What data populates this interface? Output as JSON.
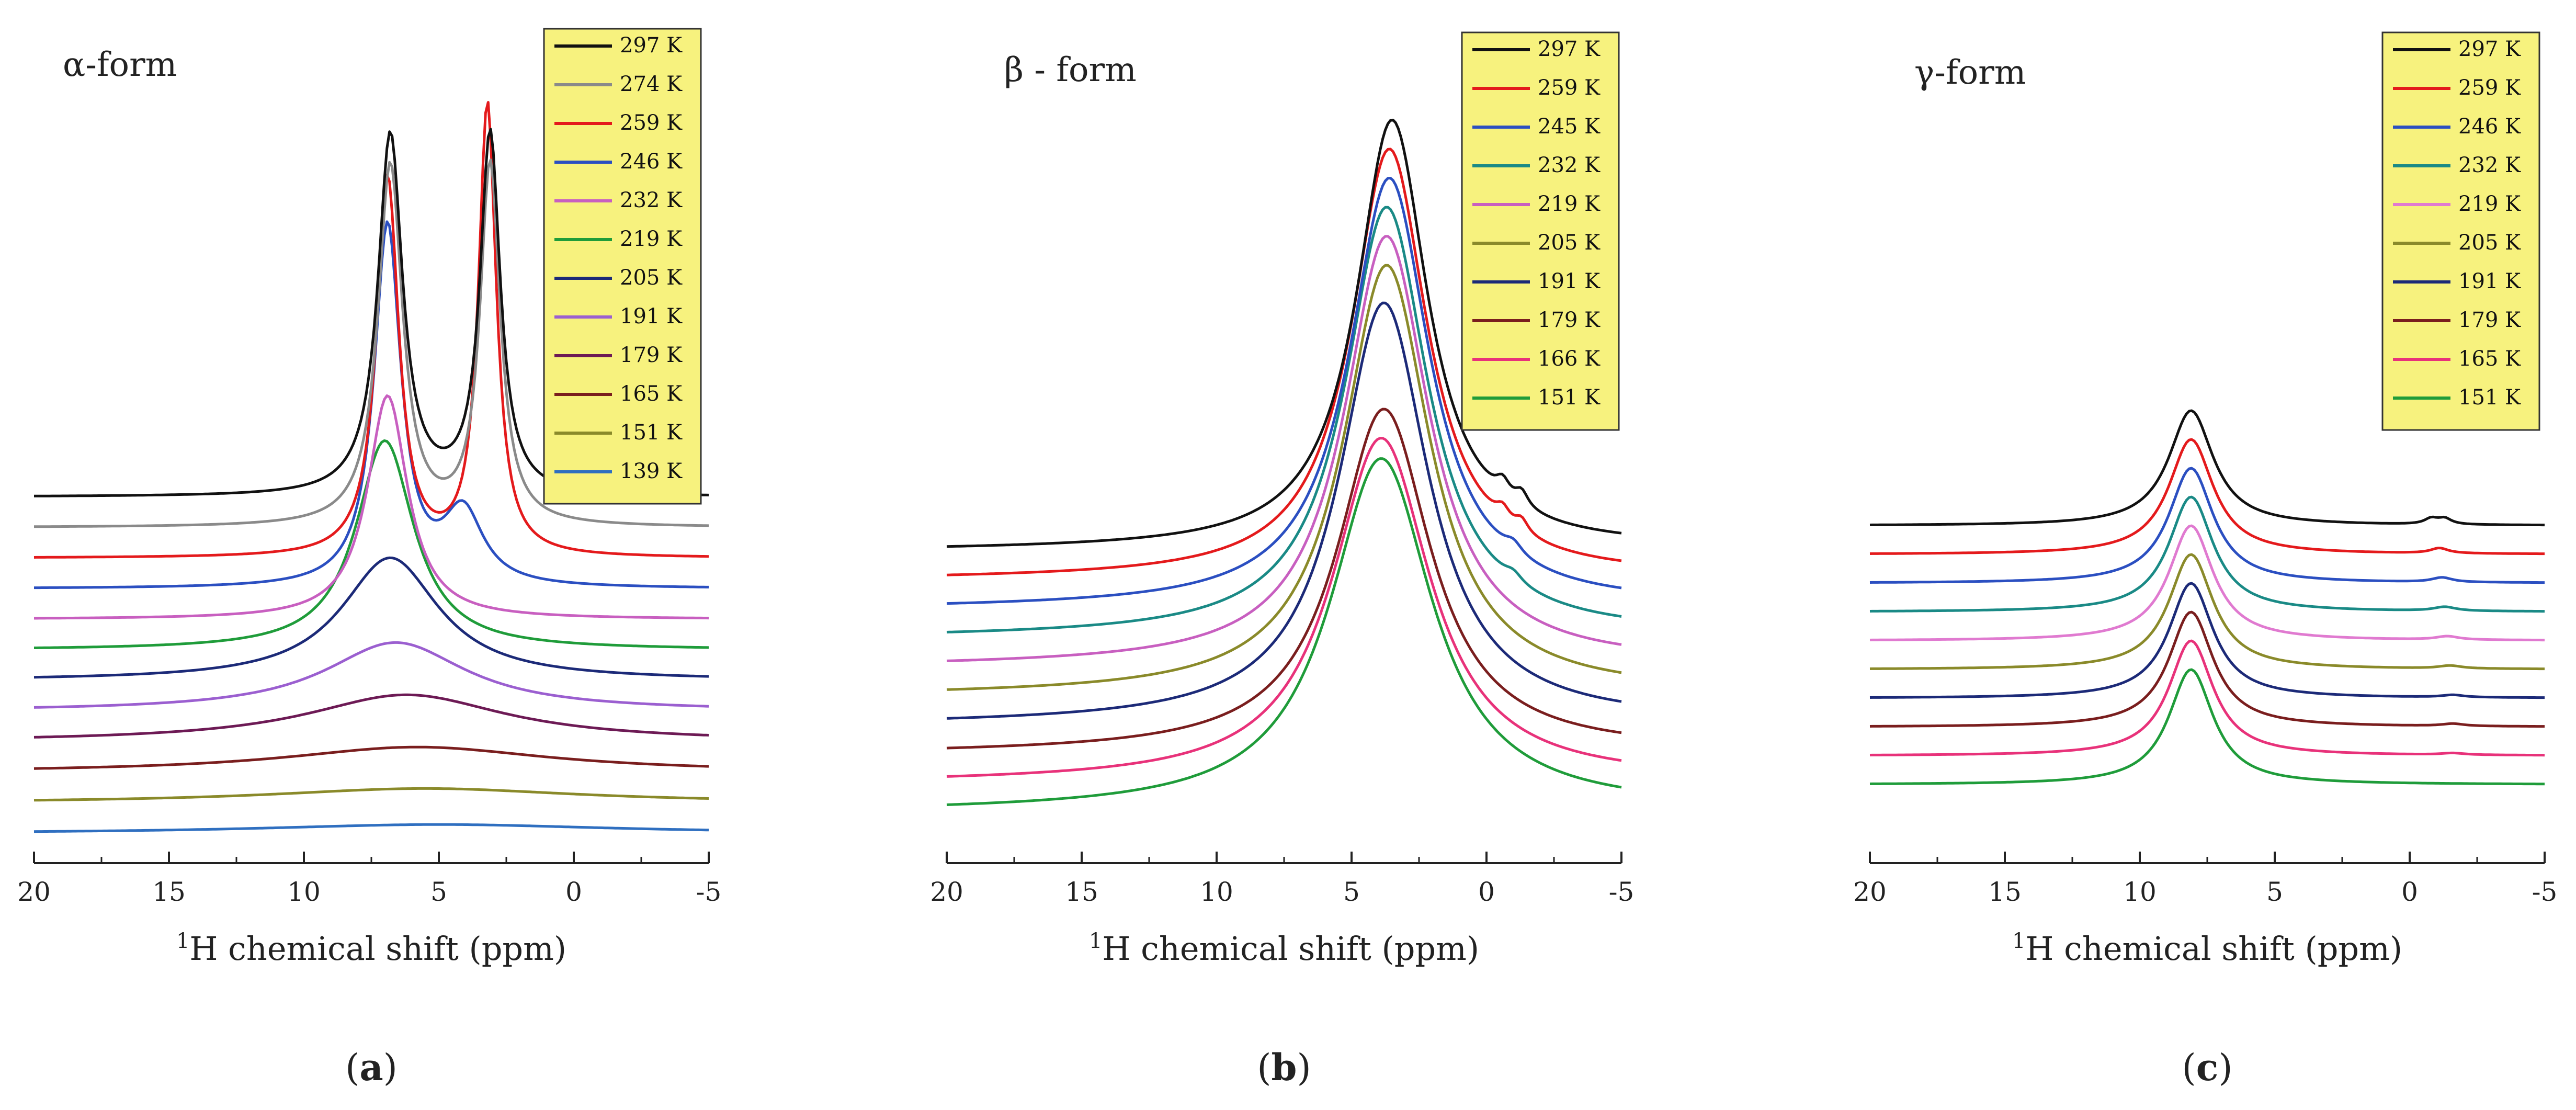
{
  "chart_data": [
    {
      "type": "line",
      "panel": "a",
      "title": "α-form",
      "caption_open": "(",
      "caption_letter": "a",
      "caption_close": ")",
      "xlabel_sup": "1",
      "xlabel": "H chemical shift (ppm)",
      "xlim": [
        20,
        -5
      ],
      "xticks": [
        20,
        15,
        10,
        5,
        0,
        -5
      ],
      "tick_labels": [
        "20",
        "15",
        "10",
        "5",
        "0",
        "-5"
      ],
      "ylabel": "",
      "legend_position": "top-right",
      "series": [
        {
          "name": "297 K",
          "color": "#111111",
          "peaks": [
            {
              "center": 6.8,
              "height": 1.0,
              "width": 0.55
            },
            {
              "center": 3.1,
              "height": 1.0,
              "width": 0.45
            }
          ]
        },
        {
          "name": "274 K",
          "color": "#8a8a8a",
          "peaks": [
            {
              "center": 6.8,
              "height": 1.0,
              "width": 0.55
            },
            {
              "center": 3.1,
              "height": 1.0,
              "width": 0.45
            }
          ]
        },
        {
          "name": "259 K",
          "color": "#e41a1c",
          "peaks": [
            {
              "center": 6.9,
              "height": 1.05,
              "width": 0.5
            },
            {
              "center": 3.2,
              "height": 1.25,
              "width": 0.4
            }
          ]
        },
        {
          "name": "246 K",
          "color": "#2b4fc1",
          "peaks": [
            {
              "center": 6.9,
              "height": 1.0,
              "width": 0.6
            },
            {
              "center": 4.1,
              "height": 0.2,
              "width": 0.9
            }
          ]
        },
        {
          "name": "232 K",
          "color": "#c85fc0",
          "peaks": [
            {
              "center": 6.9,
              "height": 0.62,
              "width": 0.9
            }
          ]
        },
        {
          "name": "219 K",
          "color": "#1f9c3a",
          "peaks": [
            {
              "center": 7.0,
              "height": 0.58,
              "width": 1.3
            }
          ]
        },
        {
          "name": "205 K",
          "color": "#1c2a78",
          "peaks": [
            {
              "center": 6.8,
              "height": 0.34,
              "width": 2.2
            }
          ]
        },
        {
          "name": "191 K",
          "color": "#9b5fd0",
          "peaks": [
            {
              "center": 6.6,
              "height": 0.19,
              "width": 3.2
            }
          ]
        },
        {
          "name": "179 K",
          "color": "#6d1a55",
          "peaks": [
            {
              "center": 6.2,
              "height": 0.13,
              "width": 4.5
            }
          ]
        },
        {
          "name": "165 K",
          "color": "#7a1e1e",
          "peaks": [
            {
              "center": 5.8,
              "height": 0.07,
              "width": 6.0
            }
          ]
        },
        {
          "name": "151 K",
          "color": "#8a8a2a",
          "peaks": [
            {
              "center": 5.5,
              "height": 0.04,
              "width": 7.0
            }
          ]
        },
        {
          "name": "139 K",
          "color": "#2f6fc0",
          "peaks": [
            {
              "center": 5.0,
              "height": 0.025,
              "width": 8.0
            }
          ]
        }
      ]
    },
    {
      "type": "line",
      "panel": "b",
      "title": "β - form",
      "caption_open": "(",
      "caption_letter": "b",
      "caption_close": ")",
      "xlabel_sup": "1",
      "xlabel": "H chemical shift (ppm)",
      "xlim": [
        20,
        -5
      ],
      "xticks": [
        20,
        15,
        10,
        5,
        0,
        -5
      ],
      "tick_labels": [
        "20",
        "15",
        "10",
        "5",
        "0",
        "-5"
      ],
      "ylabel": "",
      "legend_position": "top-right",
      "series": [
        {
          "name": "297 K",
          "color": "#111111",
          "peaks": [
            {
              "center": 3.5,
              "height": 1.0,
              "width": 1.6
            },
            {
              "center": -0.6,
              "height": 0.035,
              "width": 0.3
            },
            {
              "center": -1.3,
              "height": 0.035,
              "width": 0.3
            }
          ]
        },
        {
          "name": "259 K",
          "color": "#e41a1c",
          "peaks": [
            {
              "center": 3.6,
              "height": 1.0,
              "width": 1.7
            },
            {
              "center": -0.6,
              "height": 0.03,
              "width": 0.3
            },
            {
              "center": -1.3,
              "height": 0.03,
              "width": 0.3
            }
          ]
        },
        {
          "name": "245 K",
          "color": "#2b4fc1",
          "peaks": [
            {
              "center": 3.6,
              "height": 1.0,
              "width": 1.8
            },
            {
              "center": -1.0,
              "height": 0.025,
              "width": 0.4
            }
          ]
        },
        {
          "name": "232 K",
          "color": "#1a8a86",
          "peaks": [
            {
              "center": 3.7,
              "height": 1.0,
              "width": 1.85
            },
            {
              "center": -1.0,
              "height": 0.02,
              "width": 0.4
            }
          ]
        },
        {
          "name": "219 K",
          "color": "#c85fc0",
          "peaks": [
            {
              "center": 3.7,
              "height": 1.0,
              "width": 1.9
            }
          ]
        },
        {
          "name": "205 K",
          "color": "#8a8a2a",
          "peaks": [
            {
              "center": 3.7,
              "height": 1.0,
              "width": 1.95
            }
          ]
        },
        {
          "name": "191 K",
          "color": "#1c2a78",
          "peaks": [
            {
              "center": 3.8,
              "height": 0.98,
              "width": 2.0
            }
          ]
        },
        {
          "name": "179 K",
          "color": "#7a1e1e",
          "peaks": [
            {
              "center": 3.8,
              "height": 0.8,
              "width": 2.1
            }
          ]
        },
        {
          "name": "166 K",
          "color": "#e8327a",
          "peaks": [
            {
              "center": 3.9,
              "height": 0.8,
              "width": 2.2
            }
          ]
        },
        {
          "name": "151 K",
          "color": "#1f9c3a",
          "peaks": [
            {
              "center": 3.9,
              "height": 0.82,
              "width": 2.3
            }
          ]
        }
      ]
    },
    {
      "type": "line",
      "panel": "c",
      "title": "γ-form",
      "caption_open": "(",
      "caption_letter": "c",
      "caption_close": ")",
      "xlabel_sup": "1",
      "xlabel": "H chemical shift (ppm)",
      "xlim": [
        20,
        -5
      ],
      "xticks": [
        20,
        15,
        10,
        5,
        0,
        -5
      ],
      "tick_labels": [
        "20",
        "15",
        "10",
        "5",
        "0",
        "-5"
      ],
      "ylabel": "",
      "legend_position": "top-right",
      "series": [
        {
          "name": "297 K",
          "color": "#111111",
          "peaks": [
            {
              "center": 8.1,
              "height": 1.0,
              "width": 1.0
            },
            {
              "center": -0.8,
              "height": 0.05,
              "width": 0.3
            },
            {
              "center": -1.3,
              "height": 0.05,
              "width": 0.3
            }
          ]
        },
        {
          "name": "259 K",
          "color": "#e41a1c",
          "peaks": [
            {
              "center": 8.1,
              "height": 1.0,
              "width": 1.0
            },
            {
              "center": -1.1,
              "height": 0.045,
              "width": 0.4
            }
          ]
        },
        {
          "name": "246 K",
          "color": "#2b4fc1",
          "peaks": [
            {
              "center": 8.1,
              "height": 1.0,
              "width": 1.0
            },
            {
              "center": -1.2,
              "height": 0.04,
              "width": 0.45
            }
          ]
        },
        {
          "name": "232 K",
          "color": "#1a8a86",
          "peaks": [
            {
              "center": 8.1,
              "height": 1.0,
              "width": 1.0
            },
            {
              "center": -1.3,
              "height": 0.035,
              "width": 0.5
            }
          ]
        },
        {
          "name": "219 K",
          "color": "#e07ad0",
          "peaks": [
            {
              "center": 8.1,
              "height": 1.0,
              "width": 1.0
            },
            {
              "center": -1.4,
              "height": 0.03,
              "width": 0.5
            }
          ]
        },
        {
          "name": "205 K",
          "color": "#8a8a2a",
          "peaks": [
            {
              "center": 8.1,
              "height": 1.0,
              "width": 1.0
            },
            {
              "center": -1.5,
              "height": 0.025,
              "width": 0.5
            }
          ]
        },
        {
          "name": "191 K",
          "color": "#1c2a78",
          "peaks": [
            {
              "center": 8.1,
              "height": 1.0,
              "width": 1.0
            },
            {
              "center": -1.6,
              "height": 0.02,
              "width": 0.5
            }
          ]
        },
        {
          "name": "179 K",
          "color": "#7a1e1e",
          "peaks": [
            {
              "center": 8.1,
              "height": 1.0,
              "width": 1.0
            },
            {
              "center": -1.6,
              "height": 0.02,
              "width": 0.5
            }
          ]
        },
        {
          "name": "165 K",
          "color": "#e8327a",
          "peaks": [
            {
              "center": 8.1,
              "height": 1.0,
              "width": 1.0
            },
            {
              "center": -1.6,
              "height": 0.015,
              "width": 0.5
            }
          ]
        },
        {
          "name": "151 K",
          "color": "#1f9c3a",
          "peaks": [
            {
              "center": 8.1,
              "height": 1.0,
              "width": 1.0
            }
          ]
        }
      ]
    }
  ],
  "colors": {
    "legend_background": "#f7f27e",
    "legend_border": "#333333",
    "axis": "#222222"
  }
}
